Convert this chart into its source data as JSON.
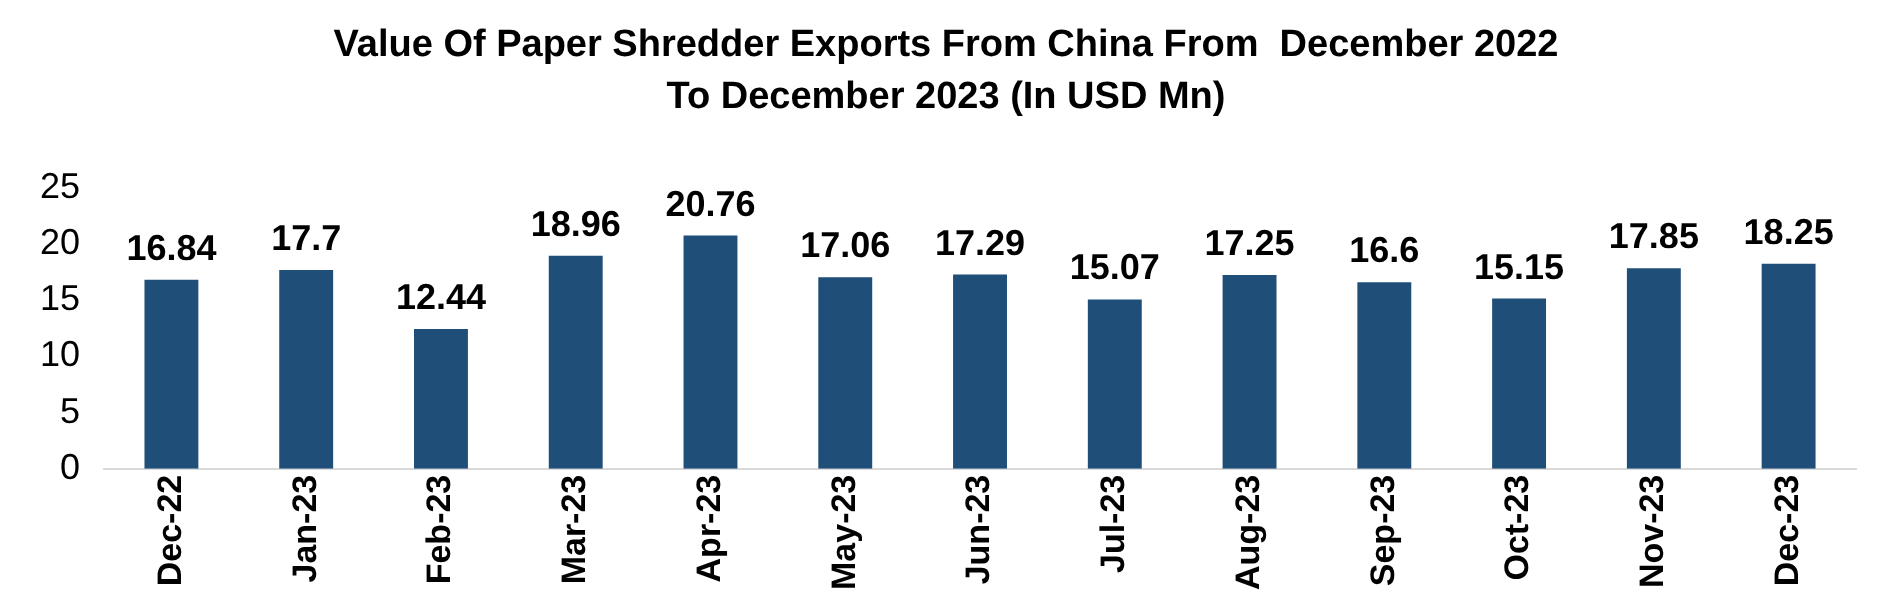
{
  "chart_data": {
    "type": "bar",
    "title": "Value Of Paper Shredder Exports From China From  December 2022 To December 2023 (In USD Mn)",
    "categories": [
      "Dec-22",
      "Jan-23",
      "Feb-23",
      "Mar-23",
      "Apr-23",
      "May-23",
      "Jun-23",
      "Jul-23",
      "Aug-23",
      "Sep-23",
      "Oct-23",
      "Nov-23",
      "Dec-23"
    ],
    "values": [
      16.84,
      17.7,
      12.44,
      18.96,
      20.76,
      17.06,
      17.29,
      15.07,
      17.25,
      16.6,
      15.15,
      17.85,
      18.25
    ],
    "color": "#1f4e79",
    "ylim": [
      0,
      25
    ],
    "yticks": [
      0,
      5,
      10,
      15,
      20,
      25
    ],
    "grid": false,
    "data_labels": true
  }
}
